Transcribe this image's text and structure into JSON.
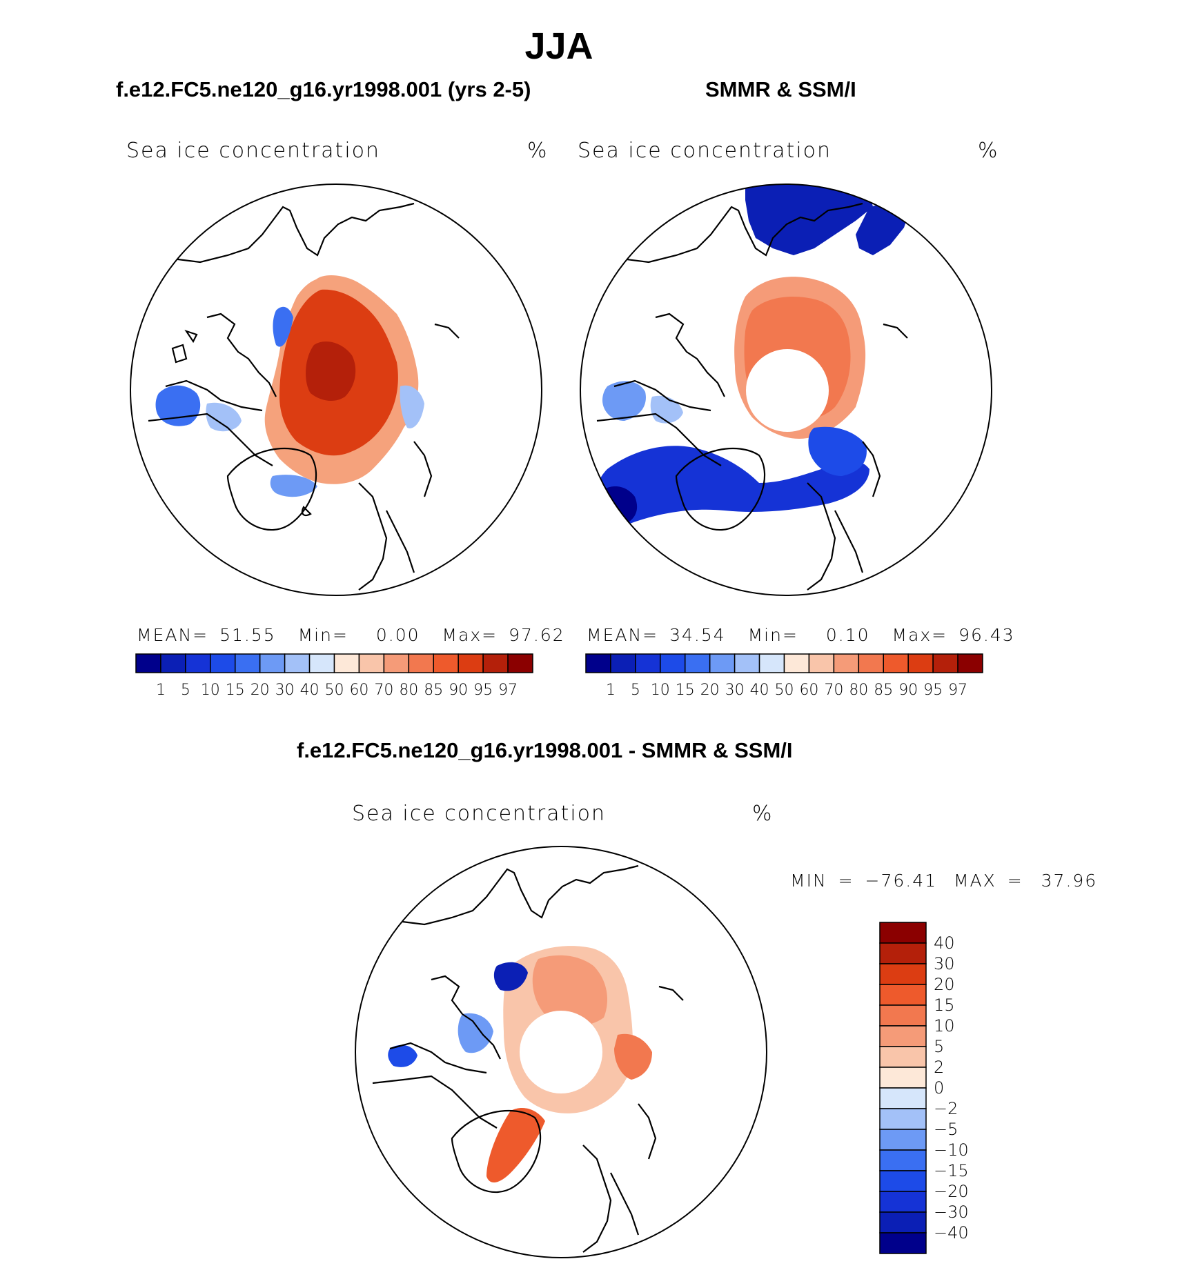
{
  "figure": {
    "title": "JJA",
    "bottom_title": "f.e12.FC5.ne120_g16.yr1998.001 - SMMR & SSM/I"
  },
  "chart_data": [
    {
      "type": "heatmap",
      "panel_title": "f.e12.FC5.ne120_g16.yr1998.001 (yrs 2-5)",
      "field_label": "Sea ice concentration",
      "units": "%",
      "stats": {
        "mean_label": "MEAN=",
        "mean": "51.55",
        "min_label": "Min=",
        "min": "0.00",
        "max_label": "Max=",
        "max": "97.62"
      },
      "colorbar": {
        "ticks": [
          "1",
          "5",
          "10",
          "15",
          "20",
          "30",
          "40",
          "50",
          "60",
          "70",
          "80",
          "85",
          "90",
          "95",
          "97"
        ],
        "colors": [
          "#00008b",
          "#0b1fb5",
          "#1533d6",
          "#1d4be8",
          "#3a6ff2",
          "#6d9af5",
          "#a3c1f8",
          "#d6e6fb",
          "#fde8d8",
          "#f9c5aa",
          "#f59b78",
          "#f2784f",
          "#ee5a2c",
          "#dc3d12",
          "#b4200a",
          "#8b0000"
        ]
      },
      "field": {
        "range": [
          0,
          100
        ],
        "pole_hole": false,
        "extent": "full Arctic ice pack, maximum near the pole"
      }
    },
    {
      "type": "heatmap",
      "panel_title": "SMMR & SSM/I",
      "field_label": "Sea ice concentration",
      "units": "%",
      "stats": {
        "mean_label": "MEAN=",
        "mean": "34.54",
        "min_label": "Min=",
        "min": "0.10",
        "max_label": "Max=",
        "max": "96.43"
      },
      "colorbar": {
        "ticks": [
          "1",
          "5",
          "10",
          "15",
          "20",
          "30",
          "40",
          "50",
          "60",
          "70",
          "80",
          "85",
          "90",
          "95",
          "97"
        ],
        "colors": [
          "#00008b",
          "#0b1fb5",
          "#1533d6",
          "#1d4be8",
          "#3a6ff2",
          "#6d9af5",
          "#a3c1f8",
          "#d6e6fb",
          "#fde8d8",
          "#f9c5aa",
          "#f59b78",
          "#f2784f",
          "#ee5a2c",
          "#dc3d12",
          "#b4200a",
          "#8b0000"
        ]
      },
      "field": {
        "range": [
          0,
          100
        ],
        "pole_hole": true,
        "extent": "ice pack with large low-concentration regions in North Atlantic and Hudson Bay"
      }
    },
    {
      "type": "heatmap",
      "field_label": "Sea ice concentration",
      "units": "%",
      "stats": {
        "min_label": "MIN =",
        "min": "−76.41",
        "max_label": "MAX =",
        "max": "37.96"
      },
      "colorbar": {
        "ticks": [
          "40",
          "30",
          "20",
          "15",
          "10",
          "5",
          "2",
          "0",
          "−2",
          "−5",
          "−10",
          "−15",
          "−20",
          "−30",
          "−40"
        ],
        "colors": [
          "#8b0000",
          "#b4200a",
          "#dc3d12",
          "#ee5a2c",
          "#f2784f",
          "#f59b78",
          "#f9c5aa",
          "#fde8d8",
          "#d6e6fb",
          "#a3c1f8",
          "#6d9af5",
          "#3a6ff2",
          "#1d4be8",
          "#1533d6",
          "#0b1fb5",
          "#00008b"
        ]
      },
      "field": {
        "range": [
          -76.41,
          37.96
        ],
        "pole_hole": true,
        "extent": "difference field, mostly positive in central Arctic, negative near coasts"
      }
    }
  ]
}
